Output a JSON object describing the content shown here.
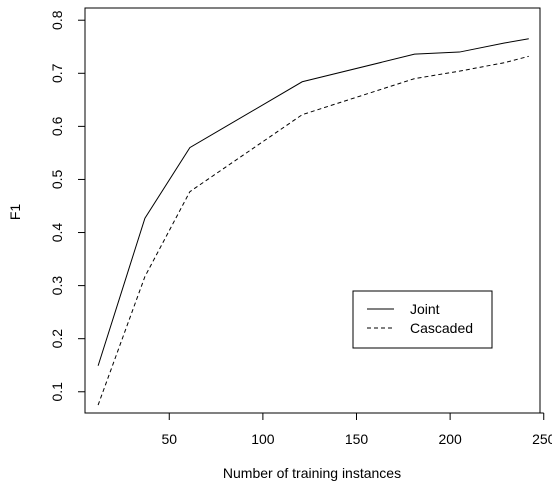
{
  "chart_data": {
    "type": "line",
    "title": "",
    "xlabel": "Number of training instances",
    "ylabel": "F1",
    "xlim": [
      5,
      248
    ],
    "ylim": [
      0.06,
      0.823
    ],
    "xticks": [
      50,
      100,
      150,
      200,
      250
    ],
    "yticks": [
      0.1,
      0.2,
      0.3,
      0.4,
      0.5,
      0.6,
      0.7,
      0.8
    ],
    "grid": false,
    "legend_position": "bottom-right",
    "series": [
      {
        "name": "Joint",
        "line_style": "solid",
        "color": "#000000",
        "x": [
          12,
          37,
          61,
          121,
          181,
          205,
          229,
          242
        ],
        "y": [
          0.149,
          0.427,
          0.56,
          0.684,
          0.736,
          0.74,
          0.757,
          0.765
        ]
      },
      {
        "name": "Cascaded",
        "line_style": "dashed",
        "color": "#000000",
        "x": [
          12,
          37,
          61,
          121,
          181,
          205,
          229,
          242
        ],
        "y": [
          0.075,
          0.317,
          0.477,
          0.622,
          0.69,
          0.704,
          0.72,
          0.732
        ]
      }
    ]
  }
}
